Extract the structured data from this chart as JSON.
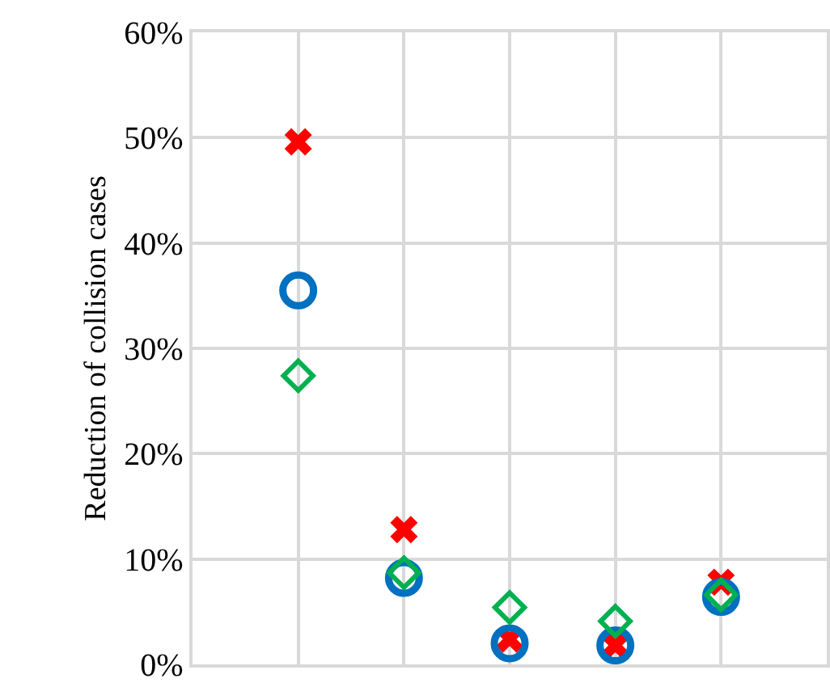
{
  "chart_data": {
    "type": "scatter",
    "ylabel": "Reduction of collision cases",
    "categories": [
      null,
      null,
      null,
      null,
      null
    ],
    "series": [
      {
        "color": "#ff0000",
        "marker": "cross",
        "values": [
          49.6,
          12.8,
          2.4,
          1.8,
          7.8
        ]
      },
      {
        "color": "#0070c0",
        "marker": "circle",
        "values": [
          35.5,
          8.2,
          2.0,
          1.8,
          6.4
        ]
      },
      {
        "color": "#00b050",
        "marker": "diamond",
        "values": [
          27.4,
          8.7,
          5.4,
          4.1,
          6.6
        ]
      }
    ],
    "ylim": [
      0,
      60
    ],
    "yticks": [
      {
        "value": 0,
        "label": "0%"
      },
      {
        "value": 10,
        "label": "10%"
      },
      {
        "value": 20,
        "label": "20%"
      },
      {
        "value": 30,
        "label": "30%"
      },
      {
        "value": 40,
        "label": "40%"
      },
      {
        "value": 50,
        "label": "50%"
      },
      {
        "value": 60,
        "label": "60%"
      }
    ],
    "grid": true,
    "tick_labels": "y"
  }
}
